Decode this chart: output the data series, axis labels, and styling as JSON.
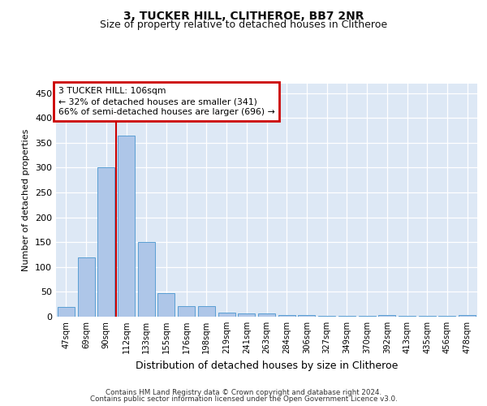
{
  "title": "3, TUCKER HILL, CLITHEROE, BB7 2NR",
  "subtitle": "Size of property relative to detached houses in Clitheroe",
  "xlabel": "Distribution of detached houses by size in Clitheroe",
  "ylabel": "Number of detached properties",
  "categories": [
    "47sqm",
    "69sqm",
    "90sqm",
    "112sqm",
    "133sqm",
    "155sqm",
    "176sqm",
    "198sqm",
    "219sqm",
    "241sqm",
    "263sqm",
    "284sqm",
    "306sqm",
    "327sqm",
    "349sqm",
    "370sqm",
    "392sqm",
    "413sqm",
    "435sqm",
    "456sqm",
    "478sqm"
  ],
  "values": [
    20,
    120,
    300,
    365,
    150,
    48,
    22,
    22,
    8,
    6,
    6,
    4,
    4,
    2,
    2,
    2,
    4,
    2,
    2,
    2,
    4
  ],
  "bar_color": "#aec6e8",
  "bar_edge_color": "#5a9fd4",
  "vline_color": "#cc0000",
  "vline_x_index": 2.5,
  "annotation_text": "3 TUCKER HILL: 106sqm\n← 32% of detached houses are smaller (341)\n66% of semi-detached houses are larger (696) →",
  "annotation_box_color": "#cc0000",
  "ylim": [
    0,
    470
  ],
  "yticks": [
    0,
    50,
    100,
    150,
    200,
    250,
    300,
    350,
    400,
    450
  ],
  "background_color": "#dde8f5",
  "footer_line1": "Contains HM Land Registry data © Crown copyright and database right 2024.",
  "footer_line2": "Contains public sector information licensed under the Open Government Licence v3.0.",
  "title_fontsize": 10,
  "subtitle_fontsize": 9,
  "ylabel_fontsize": 8,
  "xlabel_fontsize": 9
}
